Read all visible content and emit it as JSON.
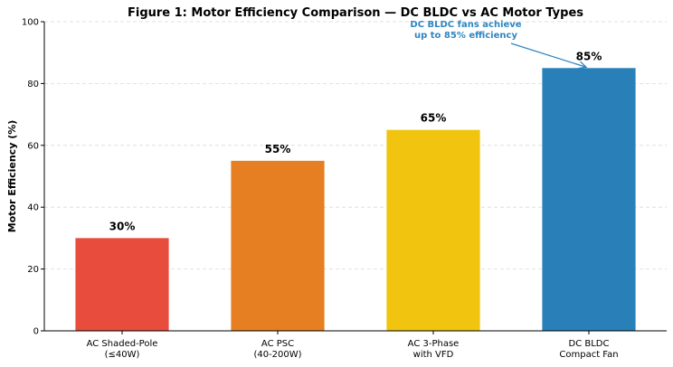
{
  "chart_data": {
    "type": "bar",
    "title": "Figure 1: Motor Efficiency Comparison — DC BLDC vs AC Motor Types",
    "xlabel": "",
    "ylabel": "Motor Efficiency (%)",
    "ylim": [
      0,
      100
    ],
    "yticks": [
      0,
      20,
      40,
      60,
      80,
      100
    ],
    "grid": "horizontal dashed",
    "categories": [
      [
        "AC Shaded-Pole",
        "(≤40W)"
      ],
      [
        "AC PSC",
        "(40-200W)"
      ],
      [
        "AC 3-Phase",
        "with VFD"
      ],
      [
        "DC BLDC",
        "Compact Fan"
      ]
    ],
    "values": [
      30,
      55,
      65,
      85
    ],
    "data_labels": [
      "30%",
      "55%",
      "65%",
      "85%"
    ],
    "colors": [
      "#e74c3c",
      "#e67e22",
      "#f1c40f",
      "#2980b9"
    ],
    "annotation": {
      "lines": [
        "DC BLDC fans achieve",
        "up to 85% efficiency"
      ],
      "target_category_index": 3,
      "color": "#2e86c1"
    }
  }
}
